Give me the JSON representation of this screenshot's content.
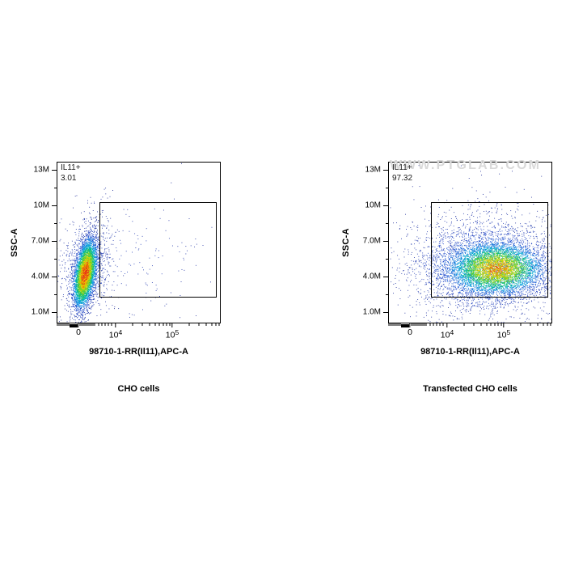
{
  "figure": {
    "background": "#ffffff",
    "description": "Flow cytometry pseudocolor dot plots of CHO cells vs transfected CHO cells stained with 98710-1-RR anti-IL11 APC"
  },
  "colors": {
    "frame": "#000000",
    "text": "#000000",
    "watermark": "#d9d9d9",
    "dot_colormap": [
      "#1f2b96",
      "#2850d2",
      "#00a8e6",
      "#00be7e",
      "#50cd32",
      "#bedc00",
      "#ffd200",
      "#ff8200",
      "#e11e19"
    ]
  },
  "chart_data": [
    {
      "type": "scatter",
      "plot_style": "pseudocolor-density",
      "caption": "CHO cells",
      "xlabel": "98710-1-RR(Il11),APC-A",
      "ylabel": "SSC-A",
      "x_scale": "biexponential",
      "x_ticks": [
        {
          "label": "0",
          "value": 0,
          "pos": 0.133
        },
        {
          "label": "10^4",
          "value": 10000,
          "pos": 0.3596
        },
        {
          "label": "10^5",
          "value": 100000,
          "pos": 0.7044
        }
      ],
      "y_ticks": [
        {
          "label": "13M",
          "value": 13000000,
          "pos": 0.05
        },
        {
          "label": "10M",
          "value": 10000000,
          "pos": 0.27
        },
        {
          "label": "7.0M",
          "value": 7000000,
          "pos": 0.49
        },
        {
          "label": "4.0M",
          "value": 4000000,
          "pos": 0.71
        },
        {
          "label": "1.0M",
          "value": 1000000,
          "pos": 0.93
        }
      ],
      "gate": {
        "name": "IL11+",
        "percent": "3.01",
        "x": [
          0.261,
          0.975
        ],
        "y": [
          0.25,
          0.84
        ]
      },
      "populations": [
        {
          "n": 900,
          "cx": 0.18,
          "cy": 0.66,
          "sx": 0.075,
          "sy": 0.155,
          "tilt": -0.015,
          "dmax": 0.22
        },
        {
          "n": 230,
          "cx": 0.38,
          "cy": 0.6,
          "sx": 0.3,
          "sy": 0.21,
          "tilt": 0,
          "dmax": 0.1
        },
        {
          "n": 5200,
          "cx": 0.172,
          "cy": 0.69,
          "sx": 0.032,
          "sy": 0.105,
          "tilt": -0.015,
          "dmax": 1.0
        }
      ],
      "seed": 42,
      "watermark": ""
    },
    {
      "type": "scatter",
      "plot_style": "pseudocolor-density",
      "caption": "Transfected CHO cells",
      "xlabel": "98710-1-RR(Il11),APC-A",
      "ylabel": "SSC-A",
      "x_scale": "biexponential",
      "x_ticks": [
        {
          "label": "0",
          "value": 0,
          "pos": 0.133
        },
        {
          "label": "10^4",
          "value": 10000,
          "pos": 0.3596
        },
        {
          "label": "10^5",
          "value": 100000,
          "pos": 0.7044
        }
      ],
      "y_ticks": [
        {
          "label": "13M",
          "value": 13000000,
          "pos": 0.05
        },
        {
          "label": "10M",
          "value": 10000000,
          "pos": 0.27
        },
        {
          "label": "7.0M",
          "value": 7000000,
          "pos": 0.49
        },
        {
          "label": "4.0M",
          "value": 4000000,
          "pos": 0.71
        },
        {
          "label": "1.0M",
          "value": 1000000,
          "pos": 0.93
        }
      ],
      "gate": {
        "name": "IL11+",
        "percent": "97.32",
        "x": [
          0.261,
          0.975
        ],
        "y": [
          0.25,
          0.84
        ]
      },
      "populations": [
        {
          "n": 700,
          "cx": 0.55,
          "cy": 0.62,
          "sx": 0.34,
          "sy": 0.22,
          "tilt": 0,
          "dmax": 0.12
        },
        {
          "n": 3200,
          "cx": 0.6,
          "cy": 0.645,
          "sx": 0.225,
          "sy": 0.14,
          "tilt": 0,
          "dmax": 0.34
        },
        {
          "n": 5200,
          "cx": 0.655,
          "cy": 0.66,
          "sx": 0.145,
          "sy": 0.082,
          "tilt": 0,
          "dmax": 0.88
        }
      ],
      "seed": 1337,
      "watermark": "WWW.PTGLAB.COM"
    }
  ]
}
